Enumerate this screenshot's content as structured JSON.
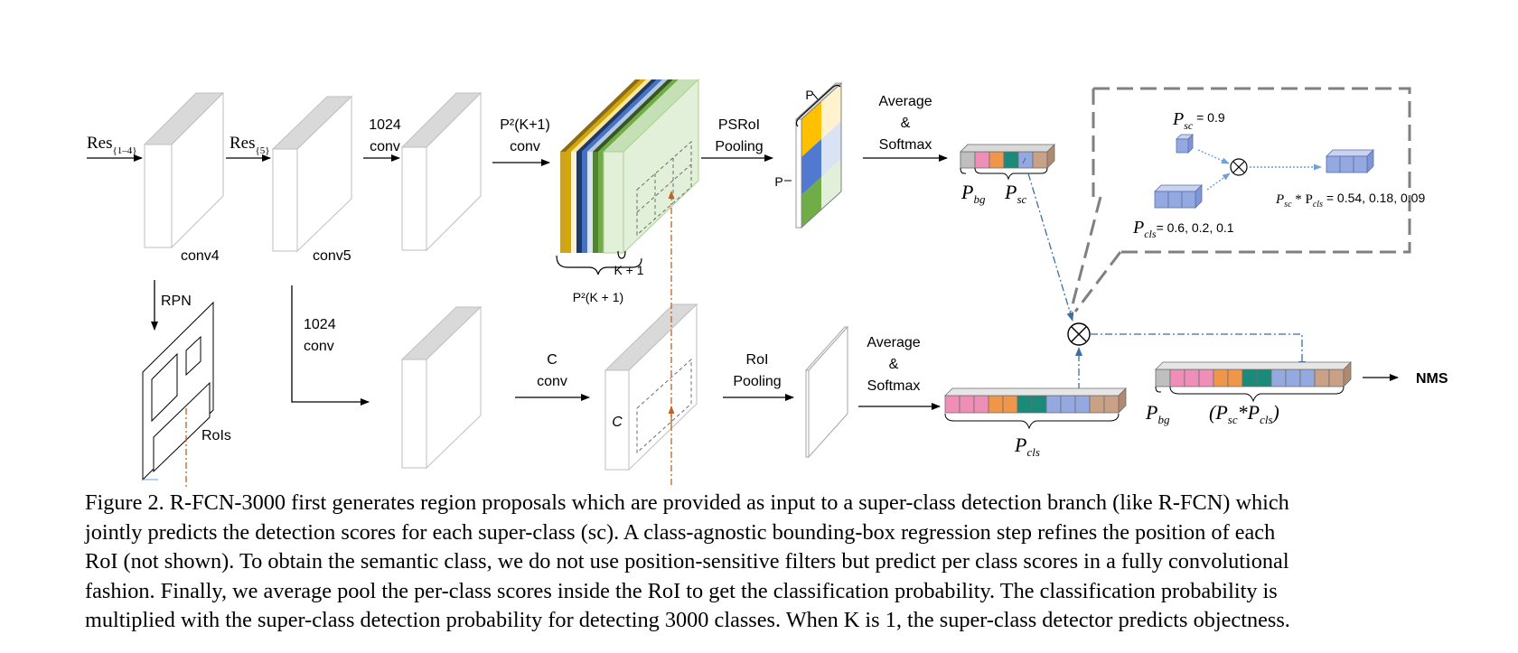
{
  "labels": {
    "res14_base": "Res",
    "res14_sub": "{1–4}",
    "res5_base": "Res",
    "res5_sub": "{5}",
    "conv4": "conv4",
    "conv5": "conv5",
    "conv1024_top_a": "1024",
    "conv1024_top_b": "conv",
    "p2k1_conv_a": "P²(K+1)",
    "p2k1_conv_b": "conv",
    "k_plus_1": "K + 1",
    "p2k1_brace": "P²(K + 1)",
    "psroi_a": "PSRoI",
    "psroi_b": "Pooling",
    "p_top": "P",
    "p_left": "P",
    "avg_top_a": "Average",
    "avg_top_b": "&",
    "avg_top_c": "Softmax",
    "p_bg": "P",
    "p_bg_sub": "bg",
    "p_sc": "P",
    "p_sc_sub": "sc",
    "rpn": "RPN",
    "rois": "RoIs",
    "conv1024_bot_a": "1024",
    "conv1024_bot_b": "conv",
    "c_conv_a": "C",
    "c_conv_b": "conv",
    "c_label": "C",
    "roi_pool_a": "RoI",
    "roi_pool_b": "Pooling",
    "avg_bot_a": "Average",
    "avg_bot_b": "&",
    "avg_bot_c": "Softmax",
    "p_cls": "P",
    "p_cls_sub": "cls",
    "p_bg2": "P",
    "p_bg2_sub": "bg",
    "psc_pcls_open": "(P",
    "psc_pcls_sub1": "sc",
    "psc_pcls_mid": "*P",
    "psc_pcls_sub2": "cls",
    "psc_pcls_close": ")",
    "nms": "NMS",
    "inset_psc": "P",
    "inset_psc_sub": "sc",
    "inset_psc_val": " = 0.9",
    "inset_pcls": "P",
    "inset_pcls_sub": "cls",
    "inset_pcls_val": "= 0.6, 0.2, 0.1",
    "inset_prod_a": "P",
    "inset_prod_a_sub": "sc",
    "inset_prod_mid": " * P",
    "inset_prod_b_sub": "cls",
    "inset_prod_val": " = 0.54, 0.18, 0.09"
  },
  "colors": {
    "gray": "#bfbfbf",
    "pink": "#ef8fb8",
    "orange": "#f0964a",
    "teal": "#1a8a7a",
    "blue_light": "#94a9e0",
    "tan": "#c9a187",
    "psroi_yellow": "#ffc000",
    "psroi_blue": "#4f7ad0",
    "psroi_green": "#70ad47",
    "dashdot": "#c4611a",
    "dashdot_blue": "#3a6ea5",
    "inset_border": "#808080"
  },
  "caption": {
    "lines": [
      "Figure 2. R-FCN-3000 first generates region proposals which are provided as input to a super-class detection branch (like R-FCN) which",
      "jointly predicts the detection scores for each super-class (sc).  A class-agnostic bounding-box regression step refines the position of each",
      "RoI (not shown). To obtain the semantic class, we do not use position-sensitive filters but predict per class scores in a fully convolutional",
      "fashion. Finally, we average pool the per-class scores inside the RoI to get the classification probability. The classification probability is",
      "multiplied with the super-class detection probability for detecting 3000 classes. When K is 1, the super-class detector predicts objectness."
    ]
  }
}
